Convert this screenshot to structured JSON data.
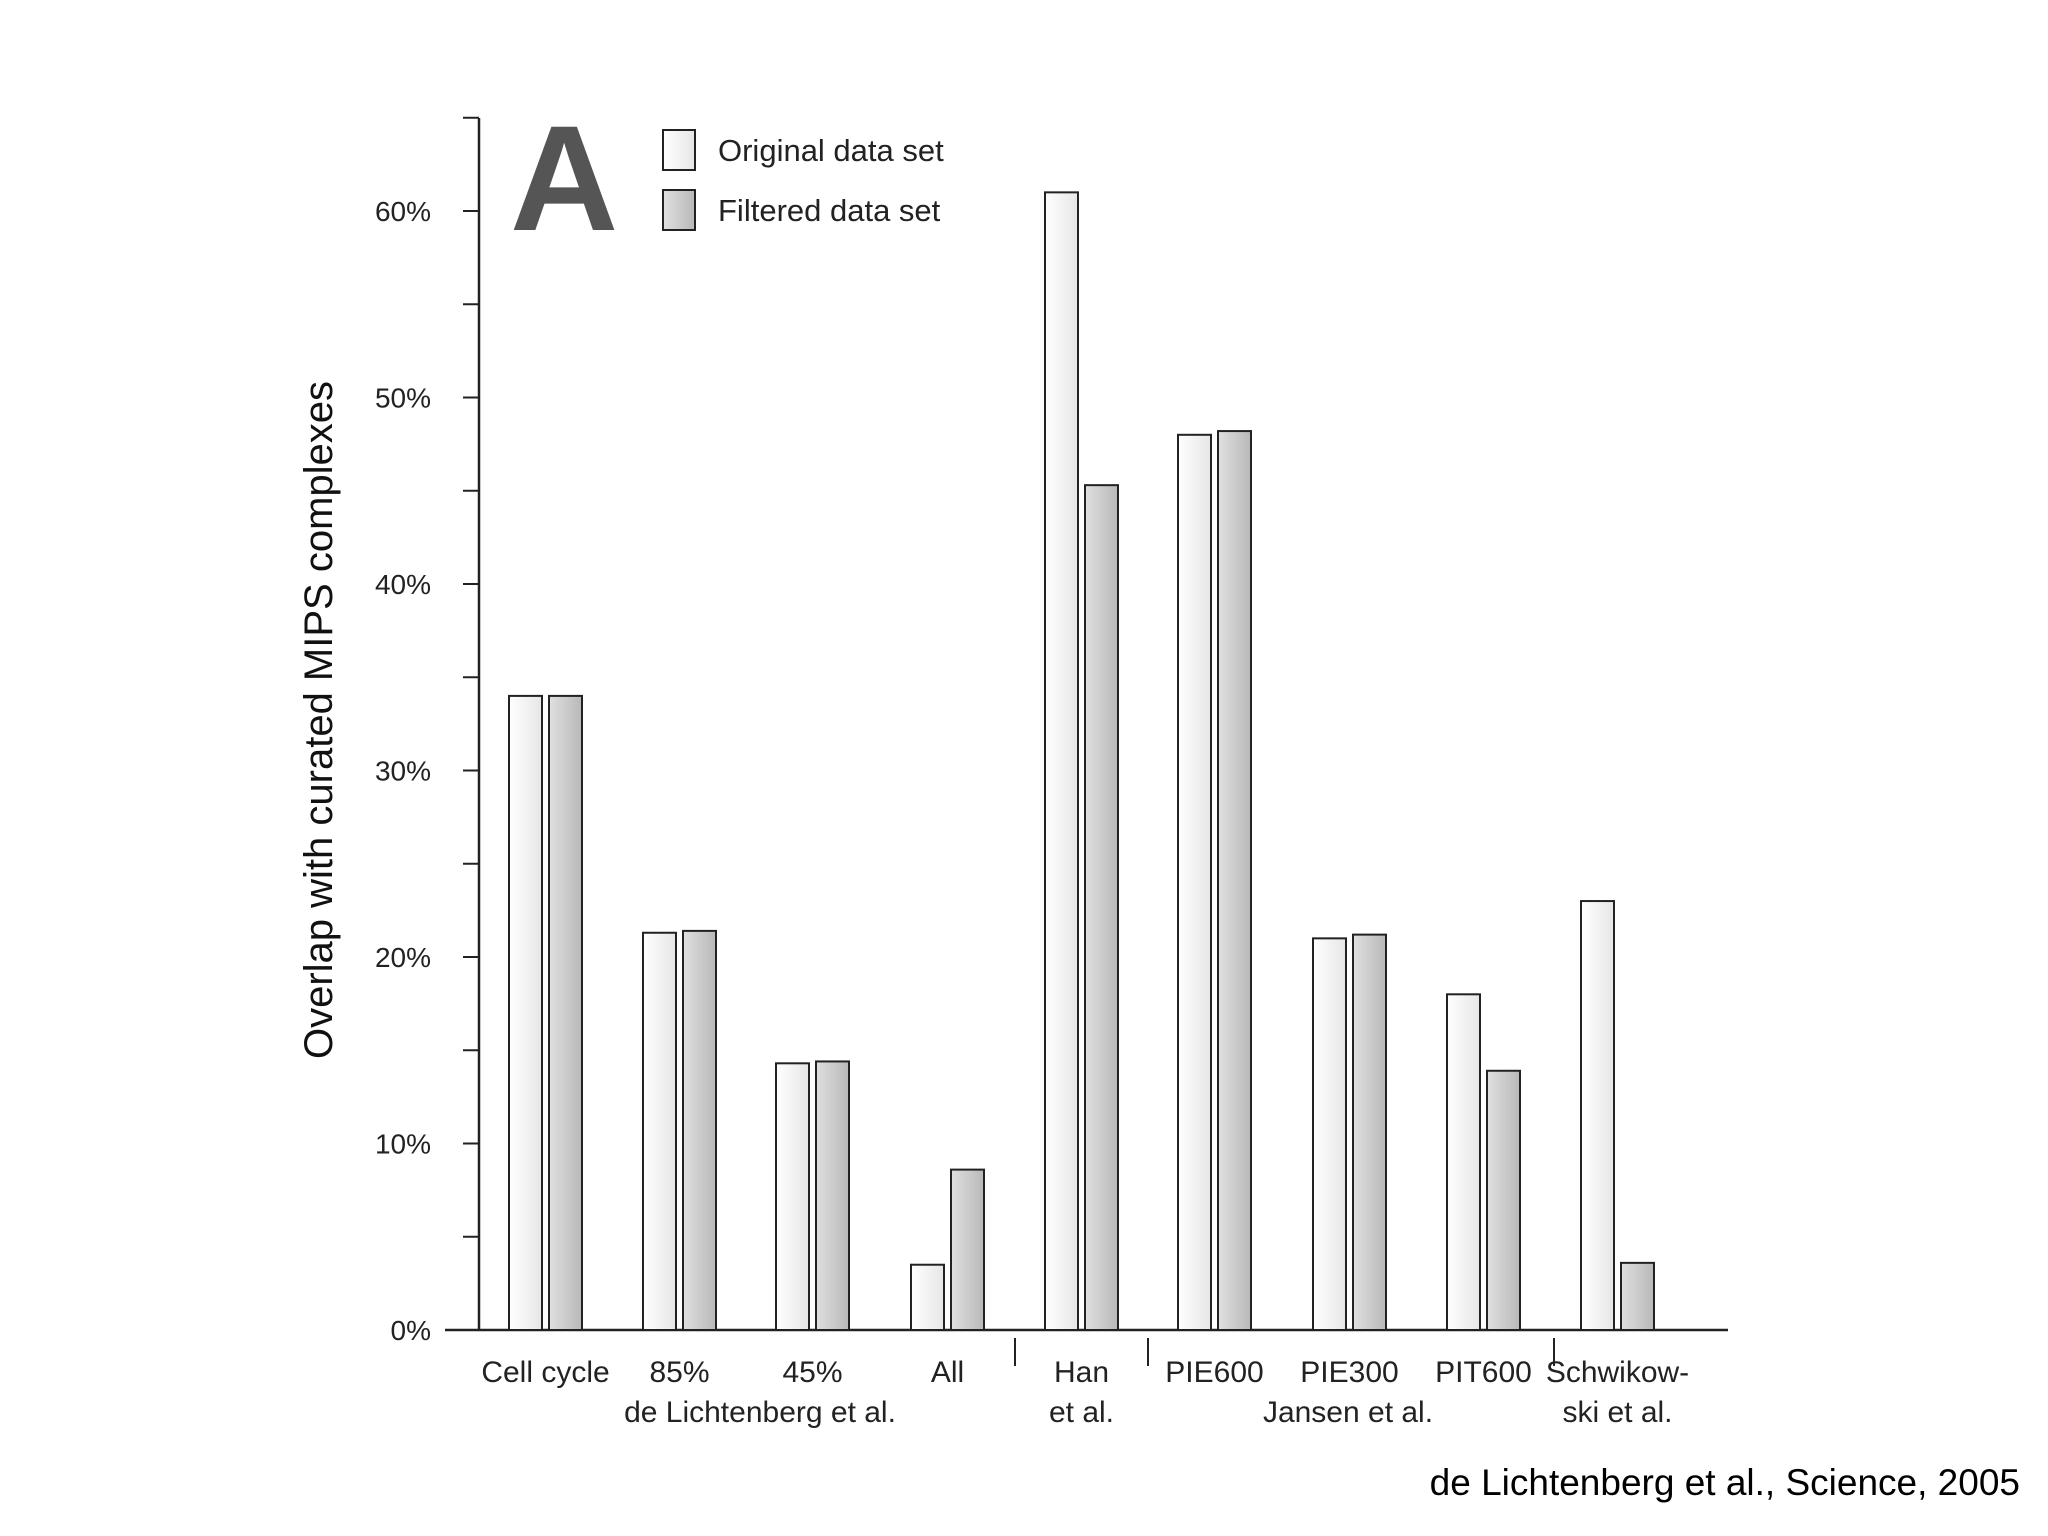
{
  "chart_data": {
    "type": "bar",
    "panel_label": "A",
    "ylabel": "Overlap with curated MIPS complexes",
    "ylim": [
      0,
      65
    ],
    "yticks": [
      "0%",
      "10%",
      "20%",
      "30%",
      "40%",
      "50%",
      "60%"
    ],
    "categories": [
      [
        "Cell cycle"
      ],
      [
        "85%"
      ],
      [
        "45%"
      ],
      [
        "All"
      ],
      [
        "Han",
        "et al."
      ],
      [
        "PIE600"
      ],
      [
        "PIE300"
      ],
      [
        "PIT600"
      ],
      [
        "Schwikow-",
        "ski et al."
      ]
    ],
    "group_labels": [
      [
        "de Lichtenberg et al."
      ],
      [],
      [
        "Jansen et al."
      ],
      []
    ],
    "series": [
      {
        "name": "Original data set",
        "values": [
          34,
          21.3,
          14.3,
          3.5,
          61,
          48,
          21,
          18,
          23
        ],
        "color": "#f4f4f4"
      },
      {
        "name": "Filtered data set",
        "values": [
          34,
          21.4,
          14.4,
          8.6,
          45.3,
          48.2,
          21.2,
          13.9,
          3.6
        ],
        "color": "#c8c8c8"
      }
    ],
    "grid": false,
    "legend_position": "top-left"
  },
  "citation": "de Lichtenberg et al., Science, 2005"
}
